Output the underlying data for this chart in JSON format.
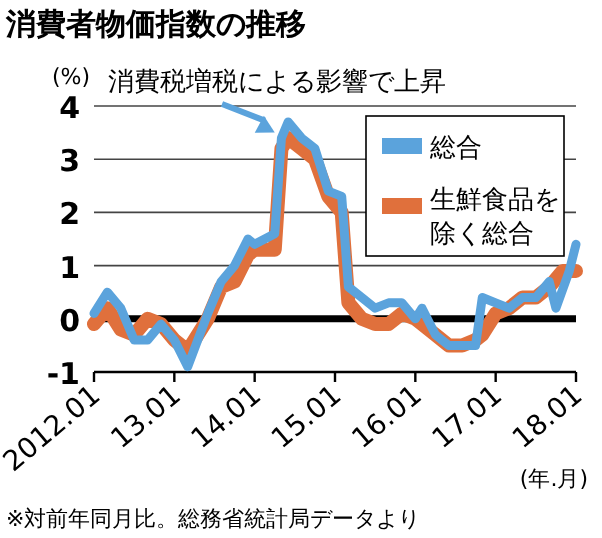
{
  "chart_data": {
    "type": "line",
    "title": "消費者物価指数の推移",
    "ylabel": "(%)",
    "xlabel": "(年.月)",
    "annotations": [
      {
        "text": "消費税増税による影響で上昇",
        "x": "2014-04",
        "y": 3.5
      },
      "※対前年同月比。総務省統計局データより"
    ],
    "xlim": [
      "2012-01",
      "2018-01"
    ],
    "xticks": [
      {
        "value": "2012-01",
        "label": "2012.01"
      },
      {
        "value": "2013-01",
        "label": "13.01"
      },
      {
        "value": "2014-01",
        "label": "14.01"
      },
      {
        "value": "2015-01",
        "label": "15.01"
      },
      {
        "value": "2016-01",
        "label": "16.01"
      },
      {
        "value": "2017-01",
        "label": "17.01"
      },
      {
        "value": "2018-01",
        "label": "18.01"
      }
    ],
    "ylim": [
      -1,
      4
    ],
    "yticks": [
      -1,
      0,
      1,
      2,
      3,
      4
    ],
    "grid": "y",
    "legend": "top right",
    "ref_lines": [
      {
        "axis": "y",
        "value": 0,
        "color": "#000000"
      }
    ],
    "series": [
      {
        "name": "生鮮食品を除く総合",
        "color": "#e0703c",
        "x": [
          "2012-01",
          "2012-03",
          "2012-05",
          "2012-07",
          "2012-09",
          "2012-11",
          "2013-01",
          "2013-03",
          "2013-06",
          "2013-08",
          "2013-10",
          "2013-12",
          "2014-01",
          "2014-04",
          "2014-05",
          "2014-06",
          "2014-08",
          "2014-10",
          "2014-12",
          "2015-02",
          "2015-03",
          "2015-05",
          "2015-07",
          "2015-09",
          "2015-11",
          "2016-01",
          "2016-02",
          "2016-04",
          "2016-06",
          "2016-08",
          "2016-10",
          "2016-11",
          "2017-01",
          "2017-03",
          "2017-05",
          "2017-07",
          "2017-09",
          "2017-11",
          "2018-01"
        ],
        "values": [
          -0.1,
          0.2,
          -0.2,
          -0.3,
          0.0,
          -0.1,
          -0.4,
          -0.6,
          0.0,
          0.6,
          0.7,
          1.2,
          1.3,
          1.3,
          3.2,
          3.4,
          3.2,
          3.0,
          2.3,
          2.0,
          0.3,
          0.0,
          -0.1,
          -0.1,
          0.1,
          0.0,
          -0.1,
          -0.3,
          -0.5,
          -0.5,
          -0.4,
          -0.3,
          0.1,
          0.2,
          0.4,
          0.4,
          0.6,
          0.9,
          0.9
        ]
      },
      {
        "name": "総合",
        "color": "#5ba3dc",
        "x": [
          "2012-01",
          "2012-03",
          "2012-05",
          "2012-07",
          "2012-09",
          "2012-11",
          "2013-01",
          "2013-03",
          "2013-06",
          "2013-08",
          "2013-10",
          "2013-12",
          "2014-01",
          "2014-04",
          "2014-05",
          "2014-06",
          "2014-08",
          "2014-10",
          "2014-12",
          "2015-02",
          "2015-03",
          "2015-05",
          "2015-07",
          "2015-09",
          "2015-11",
          "2016-01",
          "2016-02",
          "2016-04",
          "2016-06",
          "2016-08",
          "2016-10",
          "2016-11",
          "2017-01",
          "2017-03",
          "2017-05",
          "2017-07",
          "2017-09",
          "2017-10",
          "2017-12",
          "2018-01"
        ],
        "values": [
          0.1,
          0.5,
          0.2,
          -0.4,
          -0.4,
          -0.1,
          -0.4,
          -0.9,
          0.1,
          0.7,
          1.0,
          1.5,
          1.4,
          1.6,
          3.4,
          3.7,
          3.4,
          3.2,
          2.4,
          2.3,
          0.6,
          0.4,
          0.2,
          0.3,
          0.3,
          0.0,
          0.2,
          -0.3,
          -0.5,
          -0.5,
          -0.5,
          0.4,
          0.3,
          0.2,
          0.4,
          0.4,
          0.7,
          0.2,
          0.9,
          1.4
        ]
      }
    ]
  }
}
